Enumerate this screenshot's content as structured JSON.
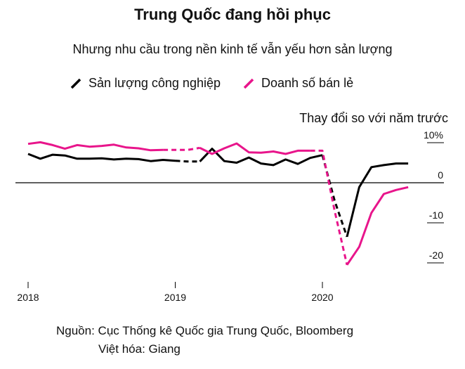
{
  "chart_data": {
    "type": "line",
    "title": "Trung Quốc đang hồi phục",
    "subtitle": "Nhưng nhu cầu trong nền kinh tế vẫn yếu hơn sản lượng",
    "ylabel": "Thay đổi so với năm trước",
    "ylim": [
      -23,
      12
    ],
    "y_ticks": [
      {
        "value": 10,
        "label": "10%"
      },
      {
        "value": 0,
        "label": "0"
      },
      {
        "value": -10,
        "label": "-10"
      },
      {
        "value": -20,
        "label": "-20"
      }
    ],
    "xlim": [
      2018.0,
      2020.75
    ],
    "x_ticks": [
      {
        "value": 2018.0,
        "label": "2018"
      },
      {
        "value": 2019.0,
        "label": "2019"
      },
      {
        "value": 2020.0,
        "label": "2020"
      }
    ],
    "legend_position": "top",
    "series": [
      {
        "name": "Sản lượng công nghiệp",
        "color": "#000000",
        "segments": [
          {
            "style": "solid",
            "points": [
              [
                2018.0,
                7.2
              ],
              [
                2018.083,
                6.0
              ],
              [
                2018.167,
                7.0
              ],
              [
                2018.25,
                6.8
              ],
              [
                2018.333,
                6.0
              ],
              [
                2018.417,
                6.0
              ],
              [
                2018.5,
                6.1
              ],
              [
                2018.583,
                5.8
              ],
              [
                2018.667,
                6.0
              ],
              [
                2018.75,
                5.9
              ],
              [
                2018.833,
                5.4
              ],
              [
                2018.917,
                5.7
              ],
              [
                2019.0,
                5.5
              ]
            ]
          },
          {
            "style": "dashed",
            "points": [
              [
                2019.0,
                5.5
              ],
              [
                2019.083,
                5.3
              ],
              [
                2019.167,
                5.3
              ]
            ]
          },
          {
            "style": "solid",
            "points": [
              [
                2019.167,
                5.3
              ],
              [
                2019.25,
                8.5
              ],
              [
                2019.333,
                5.4
              ],
              [
                2019.417,
                5.0
              ],
              [
                2019.5,
                6.3
              ],
              [
                2019.583,
                4.8
              ],
              [
                2019.667,
                4.4
              ],
              [
                2019.75,
                5.8
              ],
              [
                2019.833,
                4.7
              ],
              [
                2019.917,
                6.2
              ],
              [
                2020.0,
                6.9
              ]
            ]
          },
          {
            "style": "dashed",
            "points": [
              [
                2020.0,
                6.9
              ],
              [
                2020.083,
                -4.5
              ],
              [
                2020.167,
                -13.5
              ]
            ]
          },
          {
            "style": "solid",
            "points": [
              [
                2020.167,
                -13.5
              ],
              [
                2020.25,
                -1.1
              ],
              [
                2020.333,
                3.9
              ],
              [
                2020.417,
                4.4
              ],
              [
                2020.5,
                4.8
              ],
              [
                2020.583,
                4.8
              ]
            ]
          }
        ]
      },
      {
        "name": "Doanh số bán lẻ",
        "color": "#e8158b",
        "segments": [
          {
            "style": "solid",
            "points": [
              [
                2018.0,
                9.7
              ],
              [
                2018.083,
                10.1
              ],
              [
                2018.167,
                9.4
              ],
              [
                2018.25,
                8.5
              ],
              [
                2018.333,
                9.4
              ],
              [
                2018.417,
                9.0
              ],
              [
                2018.5,
                9.2
              ],
              [
                2018.583,
                9.5
              ],
              [
                2018.667,
                8.8
              ],
              [
                2018.75,
                8.6
              ],
              [
                2018.833,
                8.1
              ],
              [
                2018.917,
                8.2
              ]
            ]
          },
          {
            "style": "dashed",
            "points": [
              [
                2018.917,
                8.2
              ],
              [
                2019.0,
                8.2
              ],
              [
                2019.083,
                8.2
              ],
              [
                2019.167,
                8.7
              ]
            ]
          },
          {
            "style": "solid",
            "points": [
              [
                2019.167,
                8.7
              ],
              [
                2019.25,
                7.2
              ],
              [
                2019.333,
                8.6
              ],
              [
                2019.417,
                9.8
              ],
              [
                2019.5,
                7.6
              ],
              [
                2019.583,
                7.5
              ],
              [
                2019.667,
                7.8
              ],
              [
                2019.75,
                7.2
              ],
              [
                2019.833,
                8.0
              ],
              [
                2019.917,
                8.0
              ]
            ]
          },
          {
            "style": "dashed",
            "points": [
              [
                2019.917,
                8.0
              ],
              [
                2020.0,
                8.0
              ],
              [
                2020.083,
                -7.0
              ],
              [
                2020.167,
                -20.5
              ]
            ]
          },
          {
            "style": "solid",
            "points": [
              [
                2020.167,
                -20.5
              ],
              [
                2020.25,
                -16.0
              ],
              [
                2020.333,
                -7.5
              ],
              [
                2020.417,
                -2.8
              ],
              [
                2020.5,
                -1.8
              ],
              [
                2020.583,
                -1.1
              ]
            ]
          }
        ]
      }
    ],
    "source": "Nguồn: Cục Thống kê Quốc gia Trung Quốc, Bloomberg",
    "credit": "Việt hóa: Giang"
  }
}
